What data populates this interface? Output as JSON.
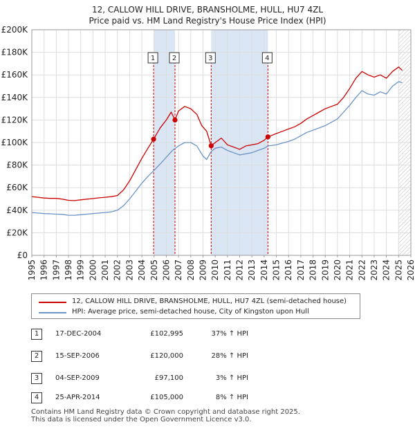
{
  "title": {
    "line1": "12, CALLOW HILL DRIVE, BRANSHOLME, HULL, HU7 4ZL",
    "line2": "Price paid vs. HM Land Registry's House Price Index (HPI)"
  },
  "colors": {
    "property": "#cc0000",
    "hpi": "#6a93c8",
    "shade": "#dbe6f5",
    "grid": "#dddddd",
    "marker_border": "#cc0000"
  },
  "chart_data": {
    "type": "line",
    "xlim": [
      1995,
      2026
    ],
    "ylim": [
      0,
      200000
    ],
    "x_ticks": [
      "1995",
      "1996",
      "1997",
      "1998",
      "1999",
      "2000",
      "2001",
      "2002",
      "2003",
      "2004",
      "2005",
      "2006",
      "2007",
      "2008",
      "2009",
      "2010",
      "2011",
      "2012",
      "2013",
      "2014",
      "2015",
      "2016",
      "2017",
      "2018",
      "2019",
      "2020",
      "2021",
      "2022",
      "2023",
      "2024",
      "2025",
      "2026"
    ],
    "y_ticks": [
      "£0",
      "£20K",
      "£40K",
      "£60K",
      "£80K",
      "£100K",
      "£120K",
      "£140K",
      "£160K",
      "£180K",
      "£200K"
    ],
    "shaded_ranges": [
      [
        2004.96,
        2006.71
      ],
      [
        2009.67,
        2014.31
      ]
    ],
    "future_hatch_from": 2025.0,
    "series": [
      {
        "name": "property",
        "points": [
          [
            1995.0,
            52000
          ],
          [
            1995.5,
            51500
          ],
          [
            1996.0,
            50800
          ],
          [
            1996.5,
            50500
          ],
          [
            1997.0,
            50500
          ],
          [
            1997.5,
            49800
          ],
          [
            1998.0,
            48800
          ],
          [
            1998.5,
            48500
          ],
          [
            1999.0,
            49200
          ],
          [
            1999.5,
            49800
          ],
          [
            2000.0,
            50300
          ],
          [
            2000.5,
            51000
          ],
          [
            2001.0,
            51500
          ],
          [
            2001.5,
            52000
          ],
          [
            2002.0,
            53000
          ],
          [
            2002.5,
            58000
          ],
          [
            2003.0,
            66000
          ],
          [
            2003.5,
            76000
          ],
          [
            2004.0,
            86000
          ],
          [
            2004.5,
            95000
          ],
          [
            2004.96,
            102995
          ],
          [
            2005.5,
            113000
          ],
          [
            2006.0,
            120000
          ],
          [
            2006.4,
            127000
          ],
          [
            2006.71,
            120000
          ],
          [
            2007.0,
            128000
          ],
          [
            2007.5,
            132000
          ],
          [
            2008.0,
            130000
          ],
          [
            2008.5,
            125000
          ],
          [
            2008.9,
            115000
          ],
          [
            2009.3,
            110000
          ],
          [
            2009.67,
            97100
          ],
          [
            2010.0,
            100000
          ],
          [
            2010.5,
            104000
          ],
          [
            2011.0,
            98000
          ],
          [
            2011.5,
            96000
          ],
          [
            2012.0,
            94000
          ],
          [
            2012.5,
            97000
          ],
          [
            2013.0,
            98000
          ],
          [
            2013.5,
            99000
          ],
          [
            2014.0,
            102000
          ],
          [
            2014.31,
            105000
          ],
          [
            2015.0,
            108000
          ],
          [
            2015.5,
            110000
          ],
          [
            2016.0,
            112000
          ],
          [
            2016.5,
            114000
          ],
          [
            2017.0,
            117000
          ],
          [
            2017.5,
            121000
          ],
          [
            2018.0,
            124000
          ],
          [
            2018.5,
            127000
          ],
          [
            2019.0,
            130000
          ],
          [
            2019.5,
            132000
          ],
          [
            2020.0,
            134000
          ],
          [
            2020.5,
            140000
          ],
          [
            2021.0,
            148000
          ],
          [
            2021.5,
            157000
          ],
          [
            2022.0,
            163000
          ],
          [
            2022.5,
            160000
          ],
          [
            2023.0,
            158000
          ],
          [
            2023.5,
            160000
          ],
          [
            2024.0,
            157000
          ],
          [
            2024.5,
            163000
          ],
          [
            2025.0,
            167000
          ],
          [
            2025.3,
            164000
          ]
        ]
      },
      {
        "name": "hpi",
        "points": [
          [
            1995.0,
            38000
          ],
          [
            1995.5,
            37500
          ],
          [
            1996.0,
            37000
          ],
          [
            1996.5,
            36800
          ],
          [
            1997.0,
            36500
          ],
          [
            1997.5,
            36300
          ],
          [
            1998.0,
            35500
          ],
          [
            1998.5,
            35500
          ],
          [
            1999.0,
            36000
          ],
          [
            1999.5,
            36500
          ],
          [
            2000.0,
            37000
          ],
          [
            2000.5,
            37500
          ],
          [
            2001.0,
            38000
          ],
          [
            2001.5,
            38500
          ],
          [
            2002.0,
            40000
          ],
          [
            2002.5,
            44000
          ],
          [
            2003.0,
            50000
          ],
          [
            2003.5,
            57000
          ],
          [
            2004.0,
            64000
          ],
          [
            2004.5,
            70000
          ],
          [
            2004.96,
            75000
          ],
          [
            2005.5,
            81000
          ],
          [
            2006.0,
            87000
          ],
          [
            2006.5,
            93000
          ],
          [
            2007.0,
            97000
          ],
          [
            2007.5,
            100000
          ],
          [
            2008.0,
            100000
          ],
          [
            2008.5,
            97000
          ],
          [
            2009.0,
            88000
          ],
          [
            2009.3,
            85000
          ],
          [
            2009.67,
            92000
          ],
          [
            2010.0,
            95000
          ],
          [
            2010.5,
            96000
          ],
          [
            2011.0,
            93000
          ],
          [
            2011.5,
            91000
          ],
          [
            2012.0,
            89000
          ],
          [
            2012.5,
            90000
          ],
          [
            2013.0,
            91000
          ],
          [
            2013.5,
            93000
          ],
          [
            2014.0,
            95000
          ],
          [
            2014.31,
            97000
          ],
          [
            2015.0,
            98000
          ],
          [
            2015.5,
            99500
          ],
          [
            2016.0,
            101000
          ],
          [
            2016.5,
            103000
          ],
          [
            2017.0,
            106000
          ],
          [
            2017.5,
            109000
          ],
          [
            2018.0,
            111000
          ],
          [
            2018.5,
            113000
          ],
          [
            2019.0,
            115000
          ],
          [
            2019.5,
            118000
          ],
          [
            2020.0,
            121000
          ],
          [
            2020.5,
            127000
          ],
          [
            2021.0,
            133000
          ],
          [
            2021.5,
            140000
          ],
          [
            2022.0,
            146000
          ],
          [
            2022.5,
            143000
          ],
          [
            2023.0,
            142000
          ],
          [
            2023.5,
            145000
          ],
          [
            2024.0,
            143000
          ],
          [
            2024.5,
            150000
          ],
          [
            2025.0,
            154000
          ],
          [
            2025.3,
            153000
          ]
        ]
      }
    ],
    "sales": [
      {
        "label": "1",
        "x": 2004.96,
        "y": 102995
      },
      {
        "label": "2",
        "x": 2006.71,
        "y": 120000
      },
      {
        "label": "3",
        "x": 2009.67,
        "y": 97100
      },
      {
        "label": "4",
        "x": 2014.31,
        "y": 105000
      }
    ]
  },
  "legend": {
    "property_label": "12, CALLOW HILL DRIVE, BRANSHOLME, HULL, HU7 4ZL (semi-detached house)",
    "hpi_label": "HPI: Average price, semi-detached house, City of Kingston upon Hull"
  },
  "transactions": [
    {
      "num": "1",
      "date": "17-DEC-2004",
      "price": "£102,995",
      "hpi": "37% ↑ HPI"
    },
    {
      "num": "2",
      "date": "15-SEP-2006",
      "price": "£120,000",
      "hpi": "28% ↑ HPI"
    },
    {
      "num": "3",
      "date": "04-SEP-2009",
      "price": "£97,100",
      "hpi": "3% ↑ HPI"
    },
    {
      "num": "4",
      "date": "25-APR-2014",
      "price": "£105,000",
      "hpi": "8% ↑ HPI"
    }
  ],
  "footer": {
    "line1": "Contains HM Land Registry data © Crown copyright and database right 2025.",
    "line2": "This data is licensed under the Open Government Licence v3.0."
  }
}
